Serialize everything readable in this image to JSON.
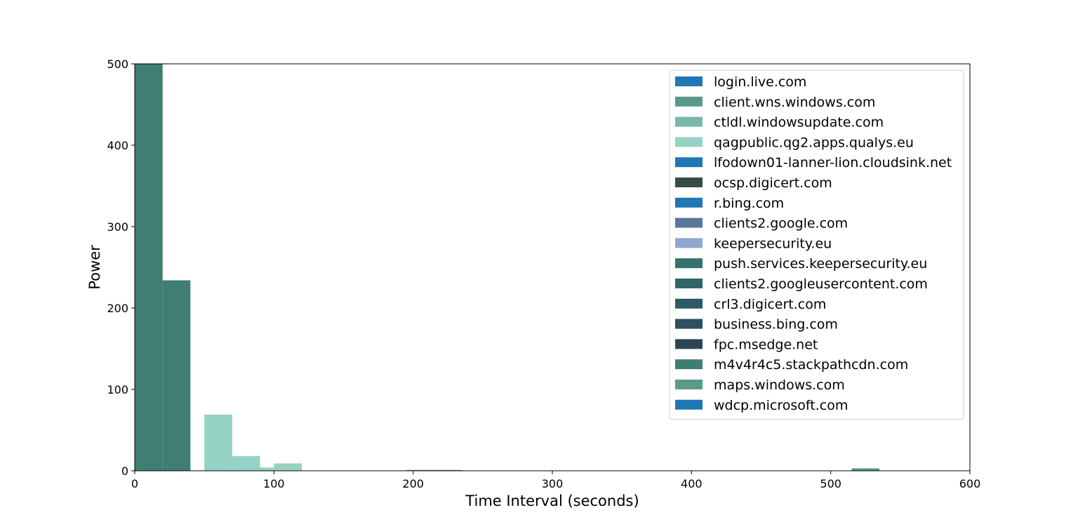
{
  "chart_data": {
    "type": "bar",
    "title": "",
    "xlabel": "Time Interval (seconds)",
    "ylabel": "Power",
    "xlim": [
      0,
      600
    ],
    "ylim": [
      0,
      500
    ],
    "xticks": [
      0,
      100,
      200,
      300,
      400,
      500,
      600
    ],
    "yticks": [
      0,
      100,
      200,
      300,
      400,
      500
    ],
    "grid": false,
    "legend_position": "top-right",
    "bin_width": 20,
    "series": [
      {
        "name": "login.live.com",
        "color": "#1f77b4",
        "bars": []
      },
      {
        "name": "client.wns.windows.com",
        "color": "#5a9a8a",
        "bars": []
      },
      {
        "name": "ctldl.windowsupdate.com",
        "color": "#79b8a8",
        "bars": []
      },
      {
        "name": "qagpublic.qg2.apps.qualys.eu",
        "color": "#96d2c4",
        "bars": [
          {
            "x": 50,
            "y": 69
          },
          {
            "x": 70,
            "y": 18
          },
          {
            "x": 82,
            "y": 4
          },
          {
            "x": 100,
            "y": 9
          }
        ]
      },
      {
        "name": "lfodown01-lanner-lion.cloudsink.net",
        "color": "#1f77b4",
        "bars": []
      },
      {
        "name": "ocsp.digicert.com",
        "color": "#3a4b45",
        "bars": []
      },
      {
        "name": "r.bing.com",
        "color": "#1f77b4",
        "bars": []
      },
      {
        "name": "clients2.google.com",
        "color": "#5a779a",
        "bars": []
      },
      {
        "name": "keepersecurity.eu",
        "color": "#8ea8d2",
        "bars": []
      },
      {
        "name": "push.services.keepersecurity.eu",
        "color": "#34736b",
        "bars": []
      },
      {
        "name": "clients2.googleusercontent.com",
        "color": "#2f666a",
        "bars": []
      },
      {
        "name": "crl3.digicert.com",
        "color": "#2d5b65",
        "bars": []
      },
      {
        "name": "business.bing.com",
        "color": "#2d4f5f",
        "bars": []
      },
      {
        "name": "fpc.msedge.net",
        "color": "#2c4556",
        "bars": []
      },
      {
        "name": "m4v4r4c5.stackpathcdn.com",
        "color": "#3f7f71",
        "bars": [
          {
            "x": 0,
            "y": 500
          },
          {
            "x": 20,
            "y": 234
          },
          {
            "x": 20,
            "y": 1
          }
        ]
      },
      {
        "name": "maps.windows.com",
        "color": "#5a9a8a",
        "bars": [
          {
            "x": 195,
            "y": 1
          },
          {
            "x": 215,
            "y": 1
          },
          {
            "x": 515,
            "y": 3
          }
        ]
      },
      {
        "name": "wdcp.microsoft.com",
        "color": "#1f77b4",
        "bars": []
      }
    ]
  }
}
